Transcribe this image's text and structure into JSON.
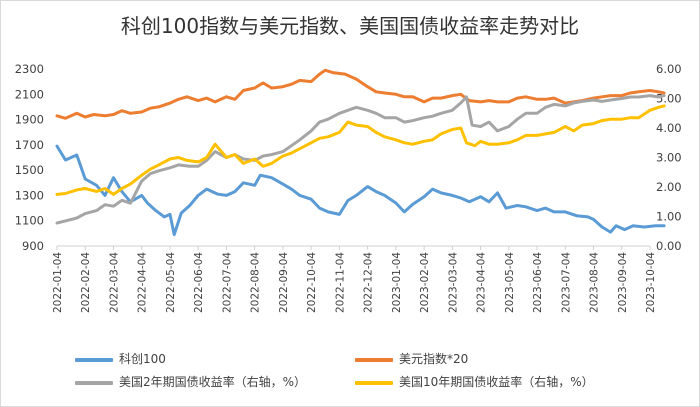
{
  "chart_data": {
    "type": "line",
    "title": "科创100指数与美元指数、美国国债收益率走势对比",
    "x_ticks": [
      "2022-01-04",
      "2022-02-04",
      "2022-03-04",
      "2022-04-04",
      "2022-05-04",
      "2022-06-04",
      "2022-07-04",
      "2022-08-04",
      "2022-09-04",
      "2022-10-04",
      "2022-11-04",
      "2022-12-04",
      "2023-01-04",
      "2023-02-04",
      "2023-03-04",
      "2023-04-04",
      "2023-05-04",
      "2023-06-04",
      "2023-07-04",
      "2023-08-04",
      "2023-09-04",
      "2023-10-04"
    ],
    "y_left": {
      "ticks": [
        "900",
        "1100",
        "1300",
        "1500",
        "1700",
        "1900",
        "2100",
        "2300"
      ],
      "range": [
        900,
        2300
      ]
    },
    "y_right": {
      "ticks": [
        "0.00",
        "1.00",
        "2.00",
        "3.00",
        "4.00",
        "5.00",
        "6.00"
      ],
      "range": [
        0,
        6
      ]
    },
    "grid": false,
    "legend_position": "bottom",
    "series": [
      {
        "name": "科创100",
        "axis": "left",
        "color": "#5b9bd5",
        "points": [
          [
            0,
            1690
          ],
          [
            0.3,
            1580
          ],
          [
            0.7,
            1620
          ],
          [
            1.0,
            1430
          ],
          [
            1.4,
            1380
          ],
          [
            1.7,
            1300
          ],
          [
            2.0,
            1440
          ],
          [
            2.3,
            1330
          ],
          [
            2.6,
            1250
          ],
          [
            3.0,
            1300
          ],
          [
            3.2,
            1240
          ],
          [
            3.5,
            1180
          ],
          [
            3.8,
            1130
          ],
          [
            4.0,
            1150
          ],
          [
            4.15,
            990
          ],
          [
            4.4,
            1160
          ],
          [
            4.7,
            1220
          ],
          [
            5.0,
            1300
          ],
          [
            5.3,
            1350
          ],
          [
            5.7,
            1310
          ],
          [
            6.0,
            1300
          ],
          [
            6.3,
            1330
          ],
          [
            6.6,
            1400
          ],
          [
            7.0,
            1380
          ],
          [
            7.2,
            1460
          ],
          [
            7.6,
            1440
          ],
          [
            8.0,
            1390
          ],
          [
            8.3,
            1350
          ],
          [
            8.6,
            1300
          ],
          [
            9.0,
            1270
          ],
          [
            9.3,
            1200
          ],
          [
            9.6,
            1170
          ],
          [
            10.0,
            1150
          ],
          [
            10.3,
            1260
          ],
          [
            10.6,
            1300
          ],
          [
            11.0,
            1370
          ],
          [
            11.3,
            1330
          ],
          [
            11.6,
            1300
          ],
          [
            12.0,
            1240
          ],
          [
            12.3,
            1170
          ],
          [
            12.6,
            1230
          ],
          [
            13.0,
            1290
          ],
          [
            13.3,
            1350
          ],
          [
            13.6,
            1320
          ],
          [
            14.0,
            1300
          ],
          [
            14.3,
            1280
          ],
          [
            14.6,
            1250
          ],
          [
            15.0,
            1290
          ],
          [
            15.3,
            1250
          ],
          [
            15.6,
            1320
          ],
          [
            15.9,
            1200
          ],
          [
            16.3,
            1220
          ],
          [
            16.6,
            1210
          ],
          [
            17.0,
            1180
          ],
          [
            17.3,
            1200
          ],
          [
            17.6,
            1170
          ],
          [
            18.0,
            1170
          ],
          [
            18.4,
            1140
          ],
          [
            18.8,
            1130
          ],
          [
            19.0,
            1110
          ],
          [
            19.3,
            1050
          ],
          [
            19.6,
            1010
          ],
          [
            19.8,
            1060
          ],
          [
            20.1,
            1030
          ],
          [
            20.4,
            1060
          ],
          [
            20.8,
            1050
          ],
          [
            21.2,
            1060
          ],
          [
            21.5,
            1060
          ]
        ]
      },
      {
        "name": "美元指数*20",
        "axis": "left",
        "color": "#ed7d31",
        "points": [
          [
            0,
            1930
          ],
          [
            0.3,
            1910
          ],
          [
            0.7,
            1950
          ],
          [
            1.0,
            1920
          ],
          [
            1.3,
            1940
          ],
          [
            1.7,
            1930
          ],
          [
            2.0,
            1940
          ],
          [
            2.3,
            1970
          ],
          [
            2.6,
            1950
          ],
          [
            3.0,
            1960
          ],
          [
            3.3,
            1990
          ],
          [
            3.6,
            2000
          ],
          [
            4.0,
            2030
          ],
          [
            4.3,
            2060
          ],
          [
            4.6,
            2080
          ],
          [
            5.0,
            2050
          ],
          [
            5.3,
            2070
          ],
          [
            5.6,
            2040
          ],
          [
            6.0,
            2080
          ],
          [
            6.3,
            2060
          ],
          [
            6.6,
            2130
          ],
          [
            7.0,
            2150
          ],
          [
            7.3,
            2190
          ],
          [
            7.6,
            2150
          ],
          [
            8.0,
            2160
          ],
          [
            8.3,
            2180
          ],
          [
            8.6,
            2210
          ],
          [
            9.0,
            2200
          ],
          [
            9.3,
            2260
          ],
          [
            9.5,
            2290
          ],
          [
            9.8,
            2270
          ],
          [
            10.2,
            2260
          ],
          [
            10.6,
            2220
          ],
          [
            11.0,
            2160
          ],
          [
            11.3,
            2120
          ],
          [
            11.6,
            2110
          ],
          [
            12.0,
            2100
          ],
          [
            12.3,
            2080
          ],
          [
            12.6,
            2080
          ],
          [
            13.0,
            2040
          ],
          [
            13.3,
            2070
          ],
          [
            13.6,
            2070
          ],
          [
            14.0,
            2090
          ],
          [
            14.3,
            2100
          ],
          [
            14.6,
            2050
          ],
          [
            15.0,
            2040
          ],
          [
            15.3,
            2050
          ],
          [
            15.6,
            2040
          ],
          [
            16.0,
            2040
          ],
          [
            16.3,
            2070
          ],
          [
            16.6,
            2080
          ],
          [
            17.0,
            2060
          ],
          [
            17.3,
            2060
          ],
          [
            17.6,
            2070
          ],
          [
            18.0,
            2030
          ],
          [
            18.3,
            2040
          ],
          [
            18.6,
            2050
          ],
          [
            19.0,
            2070
          ],
          [
            19.3,
            2080
          ],
          [
            19.6,
            2090
          ],
          [
            20.0,
            2090
          ],
          [
            20.3,
            2110
          ],
          [
            20.6,
            2120
          ],
          [
            21.0,
            2130
          ],
          [
            21.3,
            2120
          ],
          [
            21.5,
            2110
          ]
        ]
      },
      {
        "name": "美国2年期国债收益率（右轴，%）",
        "axis": "right",
        "color": "#a5a5a5",
        "points": [
          [
            0,
            0.78
          ],
          [
            0.3,
            0.85
          ],
          [
            0.7,
            0.95
          ],
          [
            1.0,
            1.1
          ],
          [
            1.4,
            1.2
          ],
          [
            1.7,
            1.4
          ],
          [
            2.0,
            1.35
          ],
          [
            2.3,
            1.55
          ],
          [
            2.6,
            1.45
          ],
          [
            3.0,
            2.2
          ],
          [
            3.3,
            2.45
          ],
          [
            3.6,
            2.55
          ],
          [
            4.0,
            2.65
          ],
          [
            4.3,
            2.75
          ],
          [
            4.7,
            2.7
          ],
          [
            5.0,
            2.7
          ],
          [
            5.3,
            2.9
          ],
          [
            5.6,
            3.2
          ],
          [
            6.0,
            3.0
          ],
          [
            6.3,
            3.1
          ],
          [
            6.6,
            2.95
          ],
          [
            7.0,
            2.9
          ],
          [
            7.3,
            3.05
          ],
          [
            7.6,
            3.1
          ],
          [
            8.0,
            3.2
          ],
          [
            8.3,
            3.4
          ],
          [
            8.6,
            3.6
          ],
          [
            9.0,
            3.9
          ],
          [
            9.3,
            4.2
          ],
          [
            9.6,
            4.3
          ],
          [
            10.0,
            4.5
          ],
          [
            10.3,
            4.6
          ],
          [
            10.6,
            4.7
          ],
          [
            11.0,
            4.6
          ],
          [
            11.3,
            4.5
          ],
          [
            11.6,
            4.35
          ],
          [
            12.0,
            4.35
          ],
          [
            12.3,
            4.2
          ],
          [
            12.6,
            4.25
          ],
          [
            13.0,
            4.35
          ],
          [
            13.3,
            4.4
          ],
          [
            13.6,
            4.5
          ],
          [
            14.0,
            4.6
          ],
          [
            14.3,
            4.85
          ],
          [
            14.5,
            5.05
          ],
          [
            14.7,
            4.1
          ],
          [
            15.0,
            4.05
          ],
          [
            15.3,
            4.2
          ],
          [
            15.6,
            3.9
          ],
          [
            16.0,
            4.05
          ],
          [
            16.3,
            4.3
          ],
          [
            16.6,
            4.5
          ],
          [
            17.0,
            4.5
          ],
          [
            17.3,
            4.7
          ],
          [
            17.6,
            4.8
          ],
          [
            18.0,
            4.75
          ],
          [
            18.3,
            4.85
          ],
          [
            18.6,
            4.9
          ],
          [
            19.0,
            4.95
          ],
          [
            19.3,
            4.9
          ],
          [
            19.6,
            4.95
          ],
          [
            20.0,
            5.0
          ],
          [
            20.3,
            5.05
          ],
          [
            20.6,
            5.05
          ],
          [
            21.0,
            5.1
          ],
          [
            21.3,
            5.05
          ],
          [
            21.5,
            5.1
          ]
        ]
      },
      {
        "name": "美国10年期国债收益率（右轴，%）",
        "axis": "right",
        "color": "#ffc000",
        "points": [
          [
            0,
            1.75
          ],
          [
            0.3,
            1.78
          ],
          [
            0.7,
            1.9
          ],
          [
            1.0,
            1.95
          ],
          [
            1.4,
            1.85
          ],
          [
            1.7,
            1.95
          ],
          [
            2.0,
            1.75
          ],
          [
            2.3,
            1.95
          ],
          [
            2.6,
            2.1
          ],
          [
            3.0,
            2.4
          ],
          [
            3.3,
            2.6
          ],
          [
            3.6,
            2.75
          ],
          [
            4.0,
            2.95
          ],
          [
            4.3,
            3.0
          ],
          [
            4.6,
            2.9
          ],
          [
            5.0,
            2.85
          ],
          [
            5.3,
            3.0
          ],
          [
            5.6,
            3.45
          ],
          [
            6.0,
            3.0
          ],
          [
            6.3,
            3.1
          ],
          [
            6.6,
            2.8
          ],
          [
            7.0,
            2.95
          ],
          [
            7.3,
            2.7
          ],
          [
            7.6,
            2.8
          ],
          [
            8.0,
            3.05
          ],
          [
            8.3,
            3.15
          ],
          [
            8.6,
            3.3
          ],
          [
            9.0,
            3.5
          ],
          [
            9.3,
            3.65
          ],
          [
            9.6,
            3.7
          ],
          [
            10.0,
            3.85
          ],
          [
            10.3,
            4.2
          ],
          [
            10.6,
            4.1
          ],
          [
            11.0,
            4.05
          ],
          [
            11.3,
            3.85
          ],
          [
            11.6,
            3.7
          ],
          [
            12.0,
            3.6
          ],
          [
            12.3,
            3.5
          ],
          [
            12.6,
            3.45
          ],
          [
            13.0,
            3.55
          ],
          [
            13.3,
            3.6
          ],
          [
            13.6,
            3.8
          ],
          [
            14.0,
            3.95
          ],
          [
            14.3,
            4.0
          ],
          [
            14.5,
            3.5
          ],
          [
            14.8,
            3.4
          ],
          [
            15.0,
            3.55
          ],
          [
            15.3,
            3.45
          ],
          [
            15.6,
            3.45
          ],
          [
            16.0,
            3.5
          ],
          [
            16.3,
            3.6
          ],
          [
            16.6,
            3.75
          ],
          [
            17.0,
            3.75
          ],
          [
            17.3,
            3.8
          ],
          [
            17.6,
            3.85
          ],
          [
            18.0,
            4.05
          ],
          [
            18.3,
            3.9
          ],
          [
            18.6,
            4.1
          ],
          [
            19.0,
            4.15
          ],
          [
            19.3,
            4.25
          ],
          [
            19.6,
            4.3
          ],
          [
            20.0,
            4.3
          ],
          [
            20.3,
            4.35
          ],
          [
            20.6,
            4.35
          ],
          [
            21.0,
            4.6
          ],
          [
            21.3,
            4.7
          ],
          [
            21.5,
            4.75
          ]
        ]
      }
    ]
  }
}
